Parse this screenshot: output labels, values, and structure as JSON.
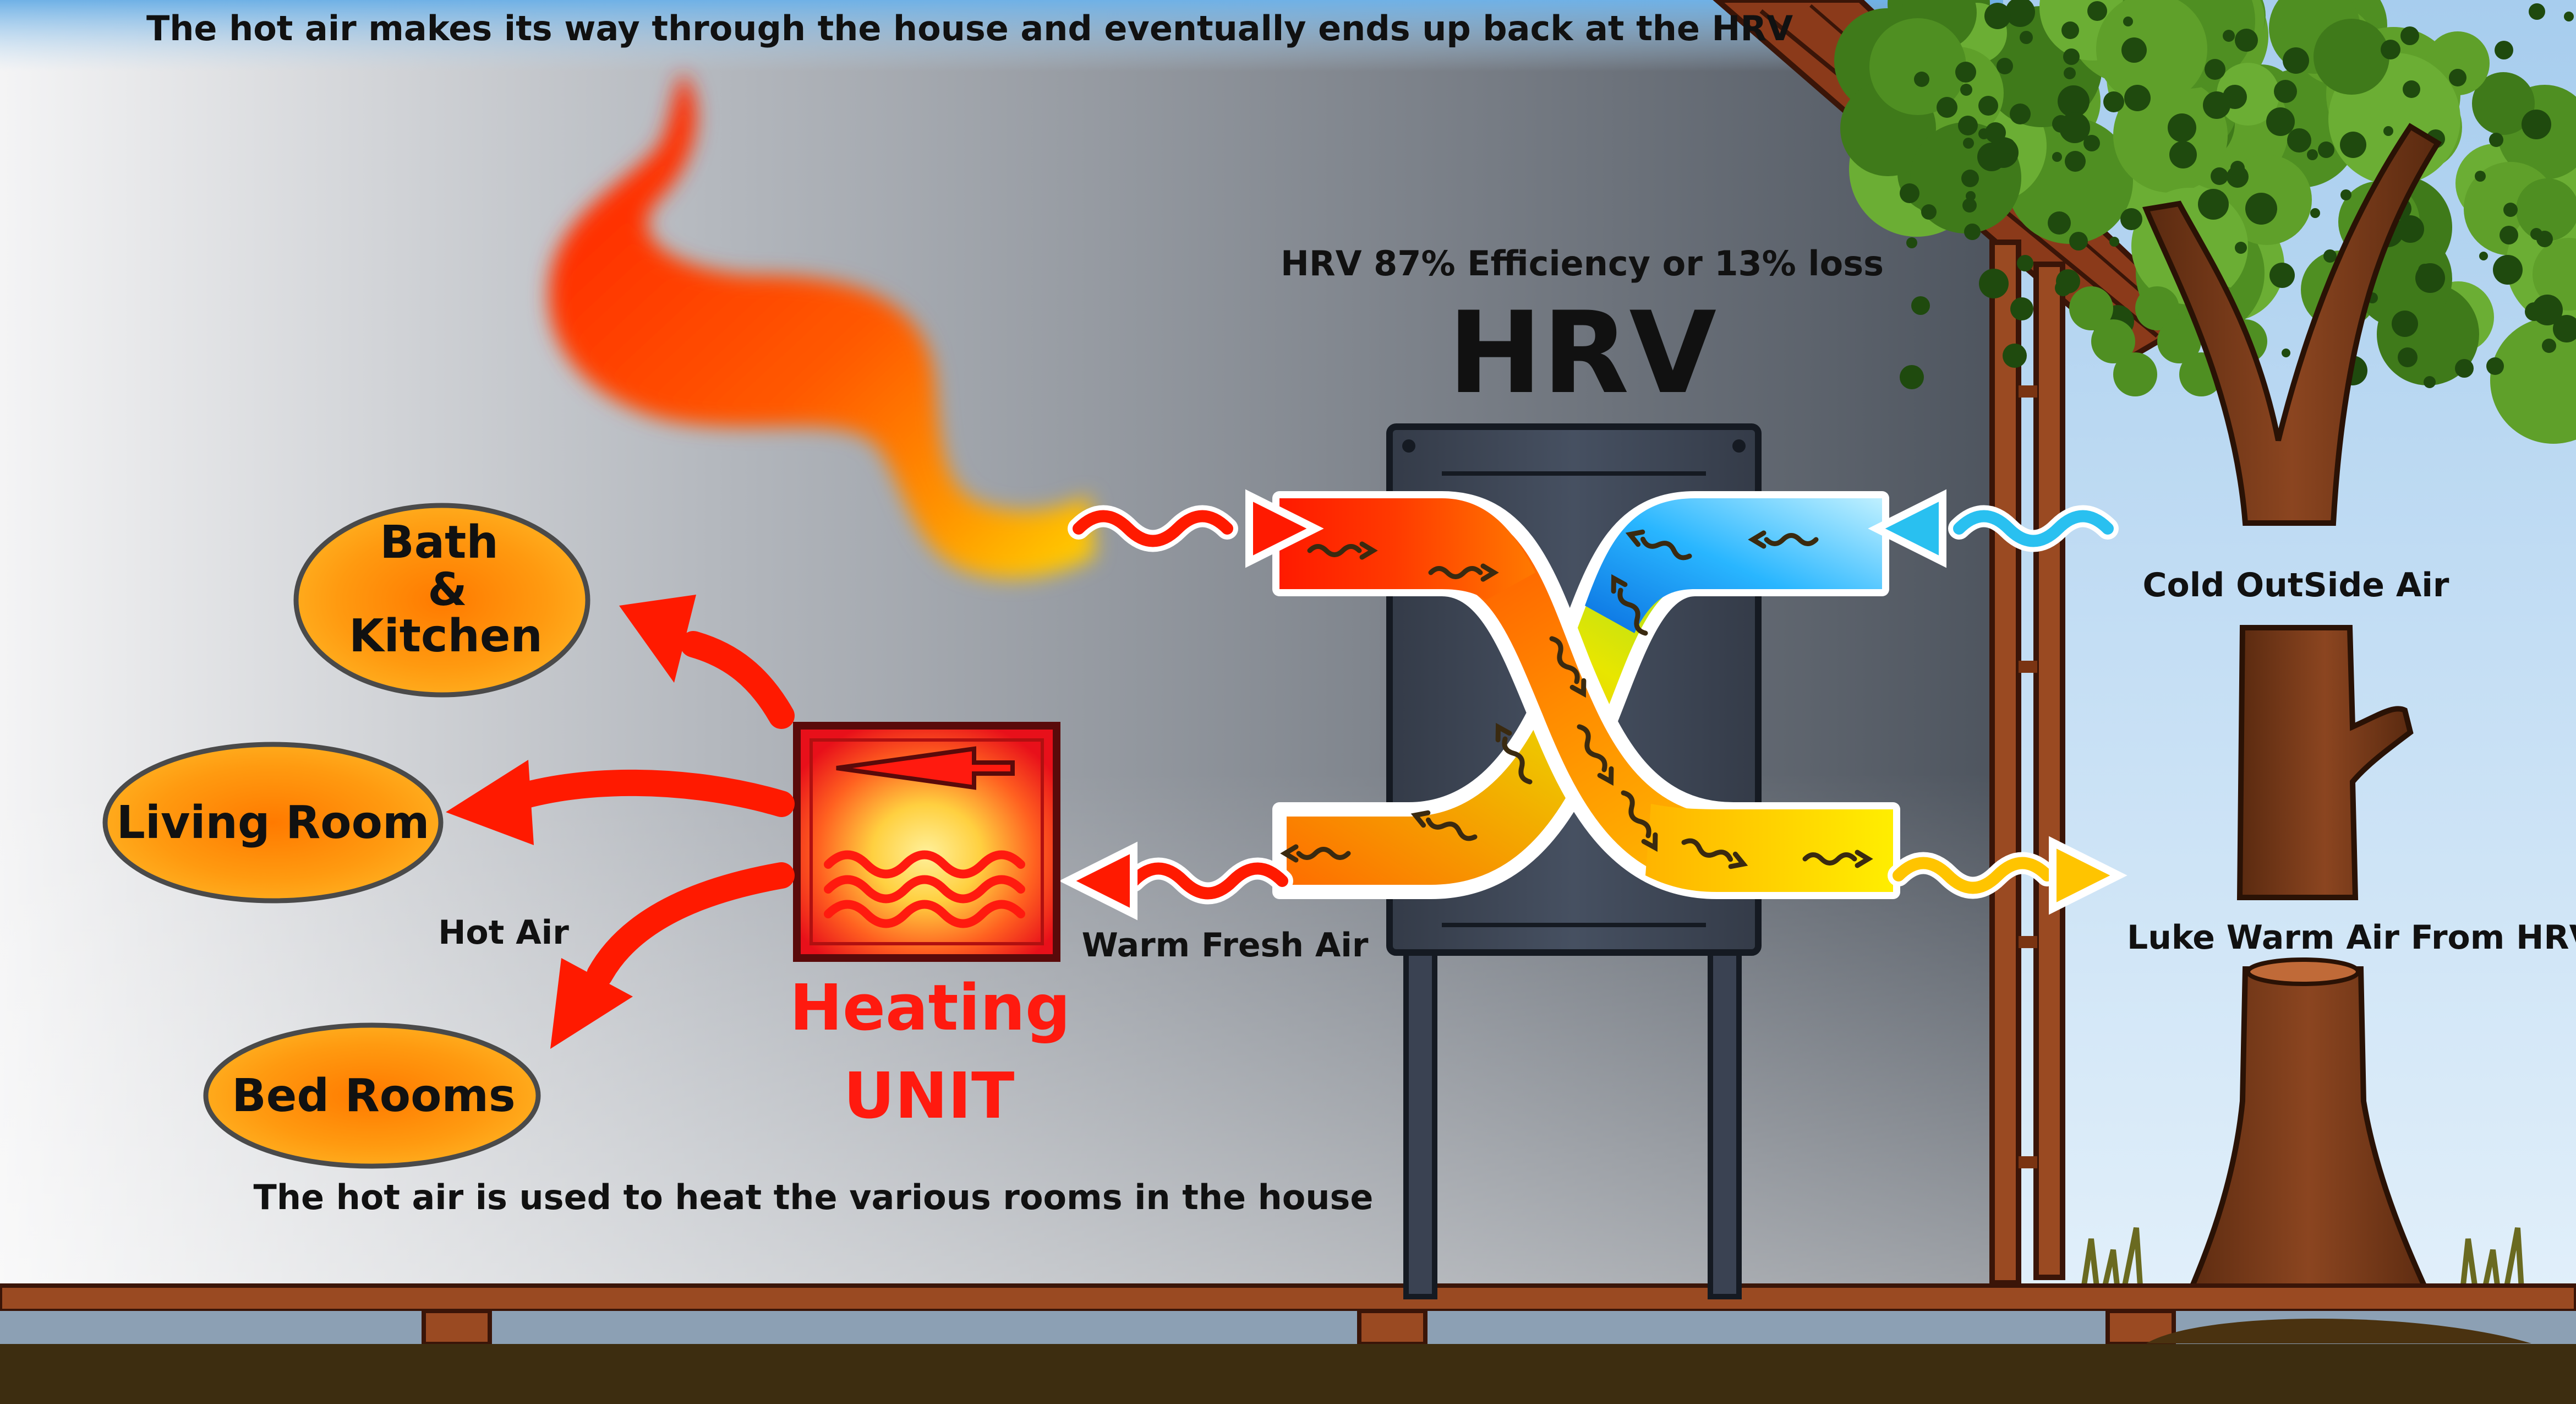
{
  "header": {
    "caption": "The hot air makes its way through the house and eventually ends up back at the HRV"
  },
  "hrv": {
    "efficiency": "HRV 87% Efficiency or 13% loss",
    "title": "HRV",
    "efficiency_percent": 87,
    "loss_percent": 13
  },
  "rooms": {
    "bath_line1": "Bath",
    "bath_line2": "&",
    "bath_line3": "Kitchen",
    "living": "Living Room",
    "bed": "Bed Rooms"
  },
  "labels": {
    "hot_air": "Hot Air",
    "warm_fresh_air": "Warm Fresh Air",
    "cold_outside_air": "Cold OutSide Air",
    "luke_warm_air": "Luke Warm Air From HRV",
    "footer": "The hot air is used to heat the various rooms in the house"
  },
  "heating_unit": {
    "line1": "Heating",
    "line2": "UNIT"
  },
  "icons": [
    "hot-air-plume",
    "heating-unit-icon",
    "flame-icon",
    "heat-wave-icon",
    "hrv-unit",
    "wavy-arrow-icon",
    "tree",
    "roof"
  ],
  "colors": {
    "hot": "#ff1a00",
    "warm": "#ff8c00",
    "yellow": "#ffee00",
    "cold": "#1aa3ff",
    "room_fill": "#ff8a00",
    "heating_label": "#ff1a0f",
    "hrv_body": "#3a4252",
    "wood": "#8b3a1a",
    "ground": "#3d2d10"
  }
}
